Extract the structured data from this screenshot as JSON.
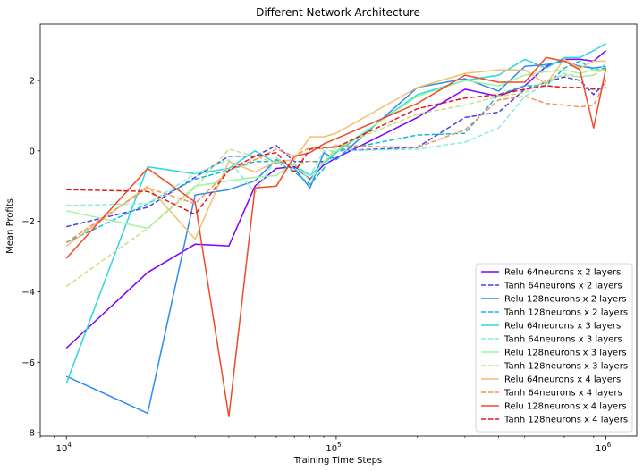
{
  "chart_data": {
    "type": "line",
    "title": "Different Network Architecture",
    "xlabel": "Training Time Steps",
    "ylabel": "Mean Profits",
    "x_scale": "log",
    "xlim": [
      8000,
      1300000
    ],
    "ylim": [
      -8.1,
      3.6
    ],
    "x_ticks": [
      {
        "value": 10000,
        "base": "10",
        "exp": "4"
      },
      {
        "value": 100000,
        "base": "10",
        "exp": "5"
      },
      {
        "value": 1000000,
        "base": "10",
        "exp": "6"
      }
    ],
    "y_ticks": [
      -8,
      -6,
      -4,
      -2,
      0,
      2
    ],
    "grid": false,
    "legend_position": "lower-right",
    "series": [
      {
        "name": "Relu 64neurons x 2 layers",
        "color": "#8000ff",
        "dash": "solid",
        "points": [
          [
            10000,
            -5.6
          ],
          [
            20000,
            -3.45
          ],
          [
            30000,
            -2.65
          ],
          [
            40000,
            -2.7
          ],
          [
            50000,
            -1.0
          ],
          [
            60000,
            -0.5
          ],
          [
            70000,
            -0.45
          ],
          [
            80000,
            -0.8
          ],
          [
            90000,
            -0.4
          ],
          [
            100000,
            -0.2
          ],
          [
            200000,
            0.95
          ],
          [
            300000,
            1.75
          ],
          [
            400000,
            1.55
          ],
          [
            500000,
            1.85
          ],
          [
            600000,
            2.4
          ],
          [
            700000,
            2.6
          ],
          [
            800000,
            2.6
          ],
          [
            900000,
            2.55
          ],
          [
            1000000,
            2.85
          ]
        ]
      },
      {
        "name": "Tanh 64neurons x 2 layers",
        "color": "#4a40e8",
        "dash": "dashed",
        "points": [
          [
            10000,
            -2.15
          ],
          [
            20000,
            -1.6
          ],
          [
            30000,
            -0.75
          ],
          [
            40000,
            -0.15
          ],
          [
            50000,
            -0.15
          ],
          [
            60000,
            0.15
          ],
          [
            70000,
            -0.3
          ],
          [
            80000,
            -0.3
          ],
          [
            90000,
            -0.3
          ],
          [
            100000,
            0.0
          ],
          [
            200000,
            0.1
          ],
          [
            300000,
            0.95
          ],
          [
            400000,
            1.1
          ],
          [
            500000,
            1.75
          ],
          [
            600000,
            1.95
          ],
          [
            700000,
            2.1
          ],
          [
            800000,
            2.0
          ],
          [
            900000,
            1.6
          ],
          [
            1000000,
            1.95
          ]
        ]
      },
      {
        "name": "Relu 128neurons x 2 layers",
        "color": "#2b8cf0",
        "dash": "solid",
        "points": [
          [
            10000,
            -6.4
          ],
          [
            20000,
            -7.45
          ],
          [
            30000,
            -1.25
          ],
          [
            40000,
            -1.1
          ],
          [
            50000,
            -0.85
          ],
          [
            60000,
            -0.25
          ],
          [
            70000,
            -0.5
          ],
          [
            80000,
            -1.05
          ],
          [
            90000,
            -0.05
          ],
          [
            100000,
            -0.25
          ],
          [
            200000,
            1.8
          ],
          [
            300000,
            2.05
          ],
          [
            400000,
            1.7
          ],
          [
            500000,
            2.4
          ],
          [
            600000,
            2.45
          ],
          [
            700000,
            2.55
          ],
          [
            800000,
            2.4
          ],
          [
            900000,
            2.35
          ],
          [
            1000000,
            2.4
          ]
        ]
      },
      {
        "name": "Tanh 128neurons x 2 layers",
        "color": "#10b8e0",
        "dash": "dashed",
        "points": [
          [
            10000,
            -2.6
          ],
          [
            20000,
            -1.5
          ],
          [
            30000,
            -0.8
          ],
          [
            40000,
            -0.55
          ],
          [
            50000,
            -0.3
          ],
          [
            60000,
            -0.3
          ],
          [
            70000,
            -0.6
          ],
          [
            80000,
            -0.95
          ],
          [
            90000,
            -0.5
          ],
          [
            100000,
            0.0
          ],
          [
            200000,
            0.45
          ],
          [
            300000,
            0.5
          ],
          [
            400000,
            1.6
          ],
          [
            500000,
            1.85
          ],
          [
            600000,
            1.85
          ],
          [
            700000,
            2.35
          ],
          [
            800000,
            2.55
          ],
          [
            900000,
            2.3
          ],
          [
            1000000,
            2.35
          ]
        ]
      },
      {
        "name": "Relu 64neurons x 3 layers",
        "color": "#2ad8dc",
        "dash": "solid",
        "points": [
          [
            10000,
            -6.6
          ],
          [
            20000,
            -0.45
          ],
          [
            30000,
            -0.65
          ],
          [
            40000,
            -0.5
          ],
          [
            50000,
            0.0
          ],
          [
            60000,
            -0.35
          ],
          [
            70000,
            -0.4
          ],
          [
            80000,
            -0.7
          ],
          [
            90000,
            -0.35
          ],
          [
            100000,
            -0.05
          ],
          [
            200000,
            1.6
          ],
          [
            300000,
            2.0
          ],
          [
            400000,
            2.15
          ],
          [
            500000,
            2.6
          ],
          [
            600000,
            2.35
          ],
          [
            700000,
            2.65
          ],
          [
            800000,
            2.65
          ],
          [
            900000,
            2.85
          ],
          [
            1000000,
            3.05
          ]
        ]
      },
      {
        "name": "Tanh 64neurons x 3 layers",
        "color": "#80f0d8",
        "dash": "dashed",
        "points": [
          [
            10000,
            -1.55
          ],
          [
            20000,
            -1.5
          ],
          [
            30000,
            -0.65
          ],
          [
            40000,
            -0.25
          ],
          [
            50000,
            -1.2
          ],
          [
            60000,
            -0.2
          ],
          [
            70000,
            -0.5
          ],
          [
            80000,
            -0.7
          ],
          [
            90000,
            0.0
          ],
          [
            100000,
            0.0
          ],
          [
            200000,
            0.05
          ],
          [
            300000,
            0.25
          ],
          [
            400000,
            0.65
          ],
          [
            500000,
            1.55
          ],
          [
            600000,
            1.9
          ],
          [
            700000,
            2.2
          ],
          [
            800000,
            2.1
          ],
          [
            900000,
            2.15
          ],
          [
            1000000,
            2.5
          ]
        ]
      },
      {
        "name": "Relu 128neurons x 3 layers",
        "color": "#a0f4a0",
        "dash": "solid",
        "points": [
          [
            10000,
            -1.7
          ],
          [
            20000,
            -2.2
          ],
          [
            30000,
            -1.0
          ],
          [
            40000,
            -0.85
          ],
          [
            50000,
            -0.75
          ],
          [
            60000,
            -0.7
          ],
          [
            70000,
            -0.35
          ],
          [
            80000,
            -0.85
          ],
          [
            90000,
            -0.3
          ],
          [
            100000,
            0.0
          ],
          [
            200000,
            1.55
          ],
          [
            300000,
            2.0
          ],
          [
            400000,
            1.85
          ],
          [
            500000,
            2.15
          ],
          [
            600000,
            2.25
          ],
          [
            700000,
            2.3
          ],
          [
            800000,
            2.2
          ],
          [
            900000,
            2.3
          ],
          [
            1000000,
            2.3
          ]
        ]
      },
      {
        "name": "Tanh 128neurons x 3 layers",
        "color": "#c8e080",
        "dash": "dashed",
        "points": [
          [
            10000,
            -3.85
          ],
          [
            20000,
            -2.2
          ],
          [
            30000,
            -1.05
          ],
          [
            40000,
            0.05
          ],
          [
            50000,
            -0.15
          ],
          [
            60000,
            -0.35
          ],
          [
            70000,
            -0.4
          ],
          [
            80000,
            -0.3
          ],
          [
            90000,
            -0.35
          ],
          [
            100000,
            0.1
          ],
          [
            200000,
            1.05
          ],
          [
            300000,
            1.3
          ],
          [
            400000,
            1.55
          ],
          [
            500000,
            1.65
          ],
          [
            600000,
            2.0
          ],
          [
            700000,
            2.15
          ],
          [
            800000,
            2.1
          ],
          [
            900000,
            2.15
          ],
          [
            1000000,
            2.35
          ]
        ]
      },
      {
        "name": "Relu 64neurons x 4 layers",
        "color": "#f0c070",
        "dash": "solid",
        "points": [
          [
            10000,
            -2.7
          ],
          [
            20000,
            -1.0
          ],
          [
            30000,
            -2.5
          ],
          [
            40000,
            -0.3
          ],
          [
            50000,
            -0.6
          ],
          [
            60000,
            -0.3
          ],
          [
            70000,
            -0.25
          ],
          [
            80000,
            0.4
          ],
          [
            90000,
            0.4
          ],
          [
            100000,
            0.5
          ],
          [
            200000,
            1.8
          ],
          [
            300000,
            2.2
          ],
          [
            400000,
            2.3
          ],
          [
            500000,
            2.3
          ],
          [
            600000,
            1.9
          ],
          [
            700000,
            2.6
          ],
          [
            800000,
            2.35
          ],
          [
            900000,
            2.55
          ],
          [
            1000000,
            2.55
          ]
        ]
      },
      {
        "name": "Tanh 64neurons x 4 layers",
        "color": "#f8905a",
        "dash": "dashed",
        "points": [
          [
            10000,
            -2.6
          ],
          [
            20000,
            -1.05
          ],
          [
            30000,
            -1.5
          ],
          [
            40000,
            -0.55
          ],
          [
            50000,
            -0.25
          ],
          [
            60000,
            0.05
          ],
          [
            70000,
            -0.15
          ],
          [
            80000,
            0.1
          ],
          [
            90000,
            0.05
          ],
          [
            100000,
            0.15
          ],
          [
            200000,
            0.1
          ],
          [
            300000,
            0.6
          ],
          [
            400000,
            1.45
          ],
          [
            500000,
            1.55
          ],
          [
            600000,
            1.35
          ],
          [
            700000,
            1.3
          ],
          [
            800000,
            1.25
          ],
          [
            900000,
            1.3
          ],
          [
            1000000,
            2.0
          ]
        ]
      },
      {
        "name": "Relu 128neurons x 4 layers",
        "color": "#f04a28",
        "dash": "solid",
        "points": [
          [
            10000,
            -3.05
          ],
          [
            20000,
            -0.5
          ],
          [
            30000,
            -1.45
          ],
          [
            40000,
            -7.55
          ],
          [
            50000,
            -1.05
          ],
          [
            60000,
            -1.0
          ],
          [
            70000,
            -0.15
          ],
          [
            80000,
            -0.05
          ],
          [
            90000,
            0.2
          ],
          [
            100000,
            0.35
          ],
          [
            200000,
            1.35
          ],
          [
            300000,
            2.15
          ],
          [
            400000,
            1.95
          ],
          [
            500000,
            1.95
          ],
          [
            600000,
            2.65
          ],
          [
            700000,
            2.55
          ],
          [
            800000,
            2.3
          ],
          [
            900000,
            0.65
          ],
          [
            1000000,
            2.35
          ]
        ]
      },
      {
        "name": "Tanh 128neurons x 4 layers",
        "color": "#e01818",
        "dash": "dashed",
        "points": [
          [
            10000,
            -1.1
          ],
          [
            20000,
            -1.15
          ],
          [
            30000,
            -1.8
          ],
          [
            40000,
            -0.55
          ],
          [
            50000,
            -0.15
          ],
          [
            60000,
            -0.05
          ],
          [
            70000,
            -0.6
          ],
          [
            80000,
            0.05
          ],
          [
            90000,
            0.1
          ],
          [
            100000,
            0.1
          ],
          [
            200000,
            1.2
          ],
          [
            300000,
            1.5
          ],
          [
            400000,
            1.6
          ],
          [
            500000,
            1.75
          ],
          [
            600000,
            1.85
          ],
          [
            700000,
            1.8
          ],
          [
            800000,
            1.8
          ],
          [
            900000,
            1.75
          ],
          [
            1000000,
            1.8
          ]
        ]
      }
    ]
  }
}
